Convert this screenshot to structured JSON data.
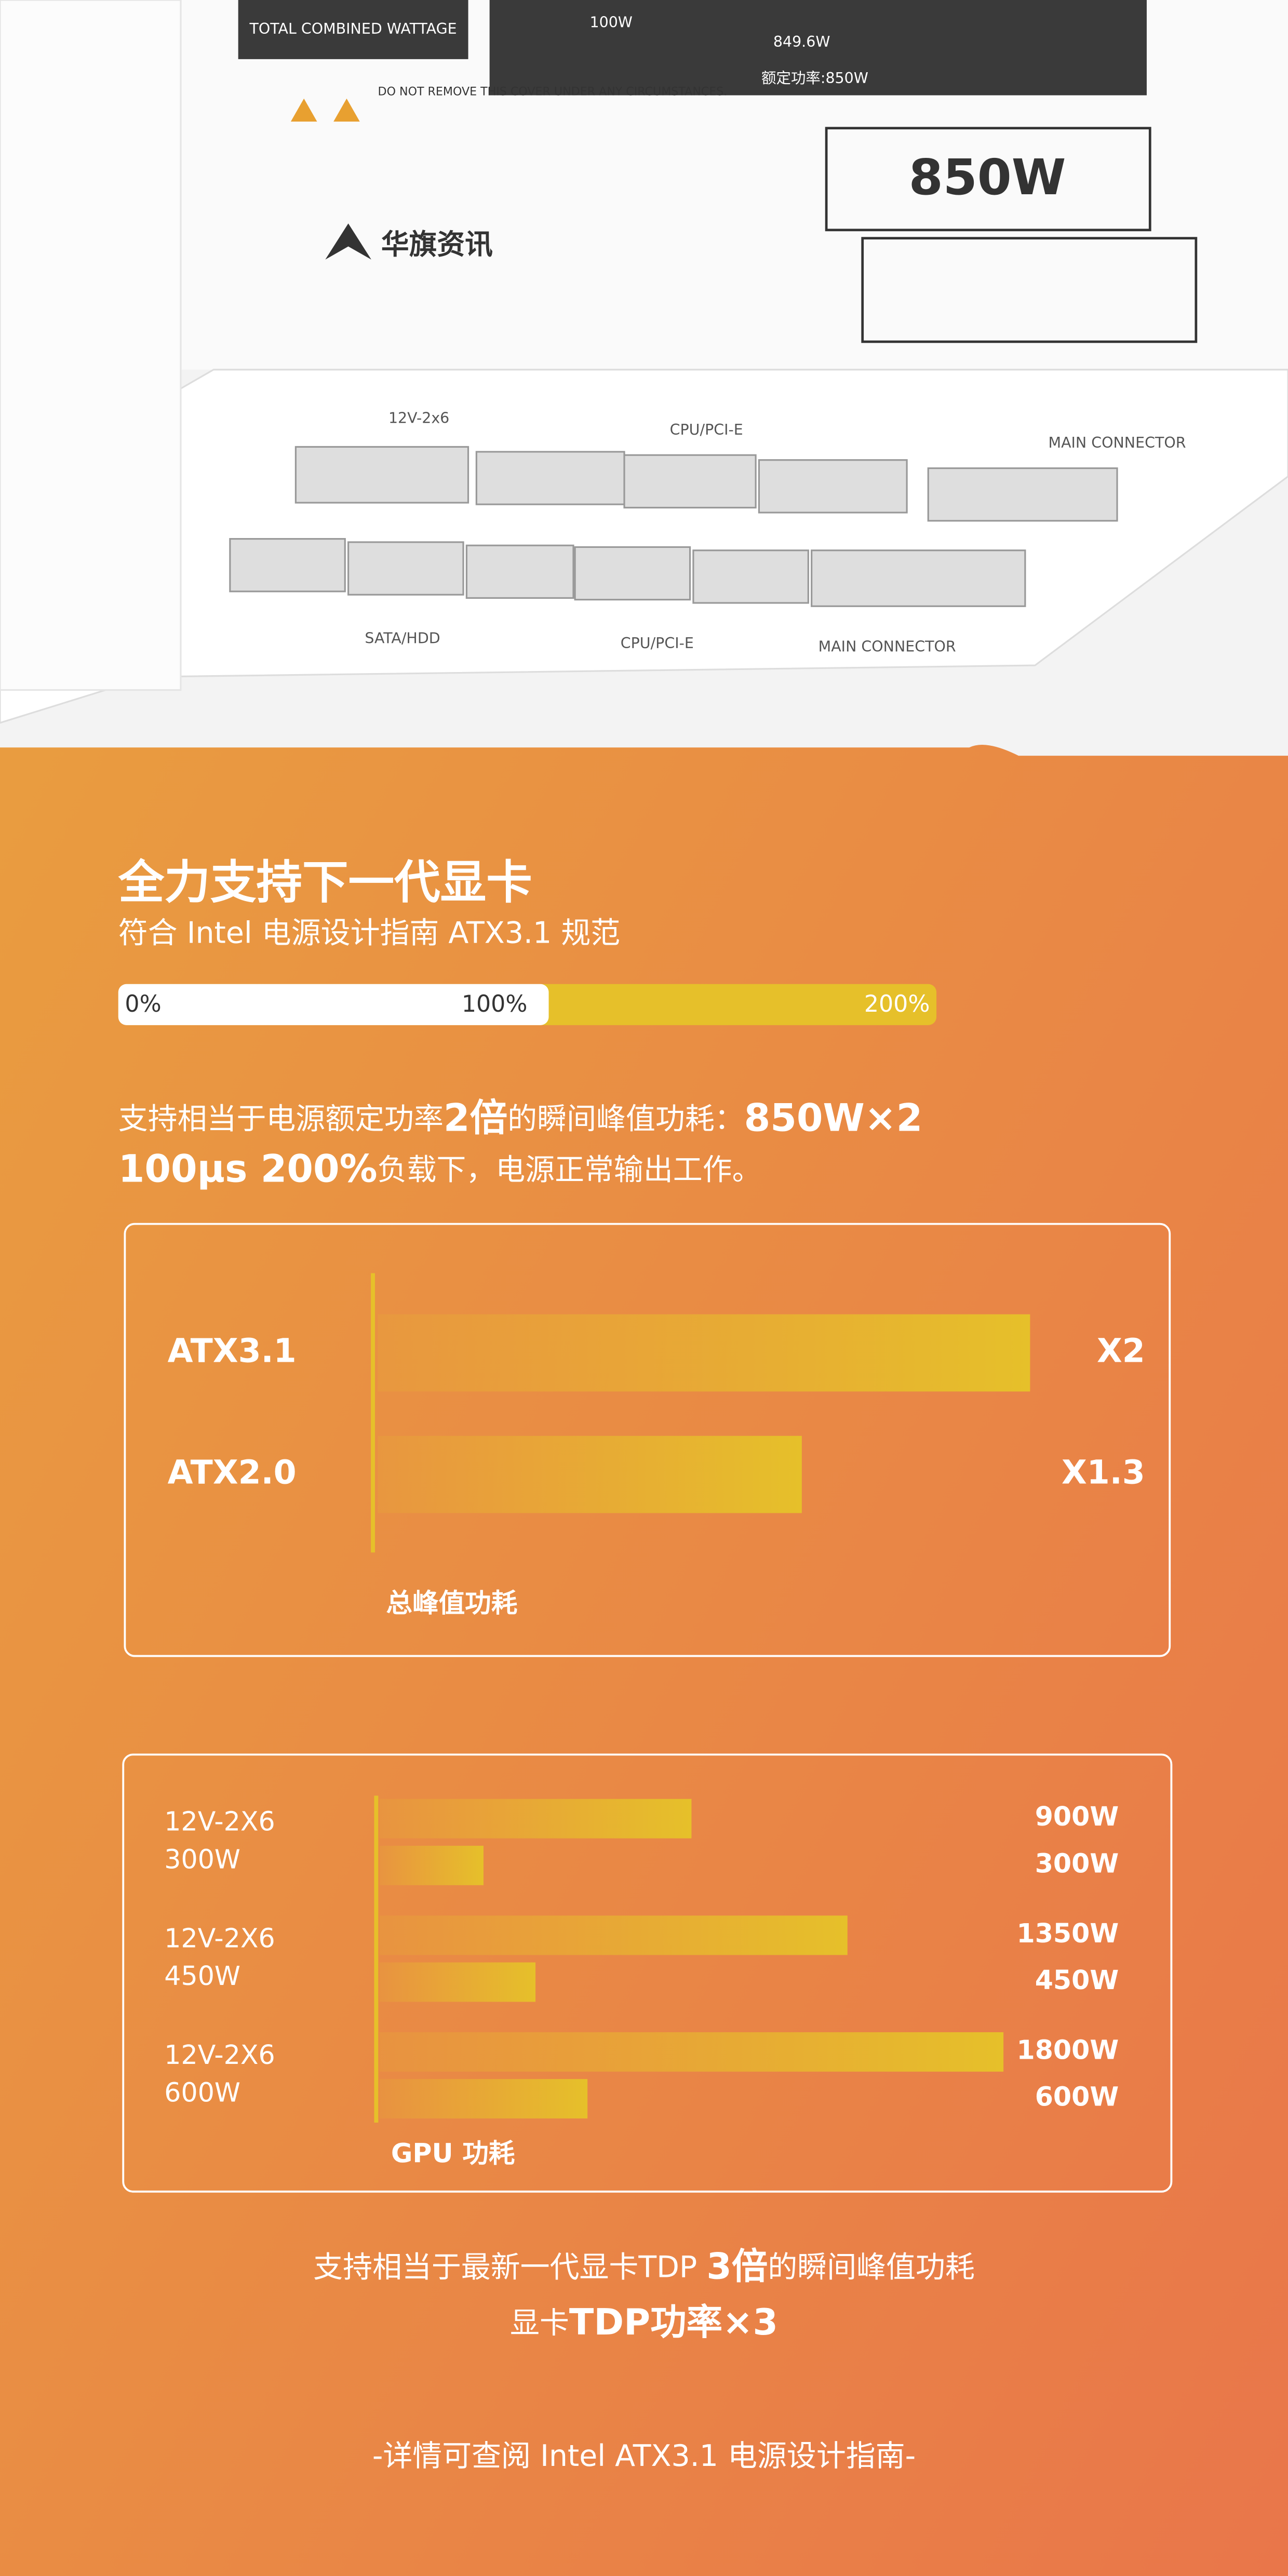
{
  "product": {
    "combined_wattage": "TOTAL COMBINED WATTAGE",
    "rail_values": [
      "100W",
      "849.6W"
    ],
    "rated_power": "额定功率:850W",
    "warning": "DO NOT REMOVE THIS COVER UNDER ANY CIRCUMSTANCES.",
    "model": "850W",
    "brand": "华旗资讯",
    "connectors_top": [
      "12V-2x6",
      "CPU/PCI-E",
      "MAIN CONNECTOR"
    ],
    "connectors_bottom": [
      "SATA/HDD",
      "CPU/PCI-E",
      "MAIN CONNECTOR"
    ]
  },
  "header": {
    "title": "全力支持下一代显卡",
    "subtitle": "符合 Intel 电源设计指南 ATX3.1 规范"
  },
  "load_scale": [
    "0%",
    "100%",
    "200%"
  ],
  "description": {
    "line1": [
      "支持相当于电源额定功率",
      "2倍",
      "的瞬间峰值功耗：",
      "850W×2"
    ],
    "line2": [
      "100μs 200%",
      "负载下，电源正常输出工作。"
    ]
  },
  "chart_data": [
    {
      "type": "hbar",
      "categories": [
        "ATX3.1",
        "ATX2.0"
      ],
      "values": [
        2,
        1.3
      ],
      "value_labels": [
        "X2",
        "X1.3"
      ],
      "color": "#e6c02a",
      "x_label": "总峰值功耗"
    },
    {
      "type": "grouped-hbar",
      "categories": [
        [
          "12V-2X6",
          "300W"
        ],
        [
          "12V-2X6",
          "450W"
        ],
        [
          "12V-2X6",
          "600W"
        ]
      ],
      "series": [
        {
          "color": "#e6c02a",
          "values": [
            900,
            1350,
            1800
          ],
          "value_labels": [
            "900W",
            "1350W",
            "1800W"
          ]
        },
        {
          "color": "#e6c02a",
          "values": [
            300,
            450,
            600
          ],
          "value_labels": [
            "300W",
            "450W",
            "600W"
          ]
        }
      ],
      "x_label": "GPU 功耗"
    }
  ],
  "footer": {
    "line1": [
      "支持相当于最新一代显卡TDP ",
      "3倍",
      "的瞬间峰值功耗"
    ],
    "line2": [
      "显卡",
      "TDP功率×3"
    ],
    "note": "-详情可查阅 Intel ATX3.1 电源设计指南-"
  }
}
